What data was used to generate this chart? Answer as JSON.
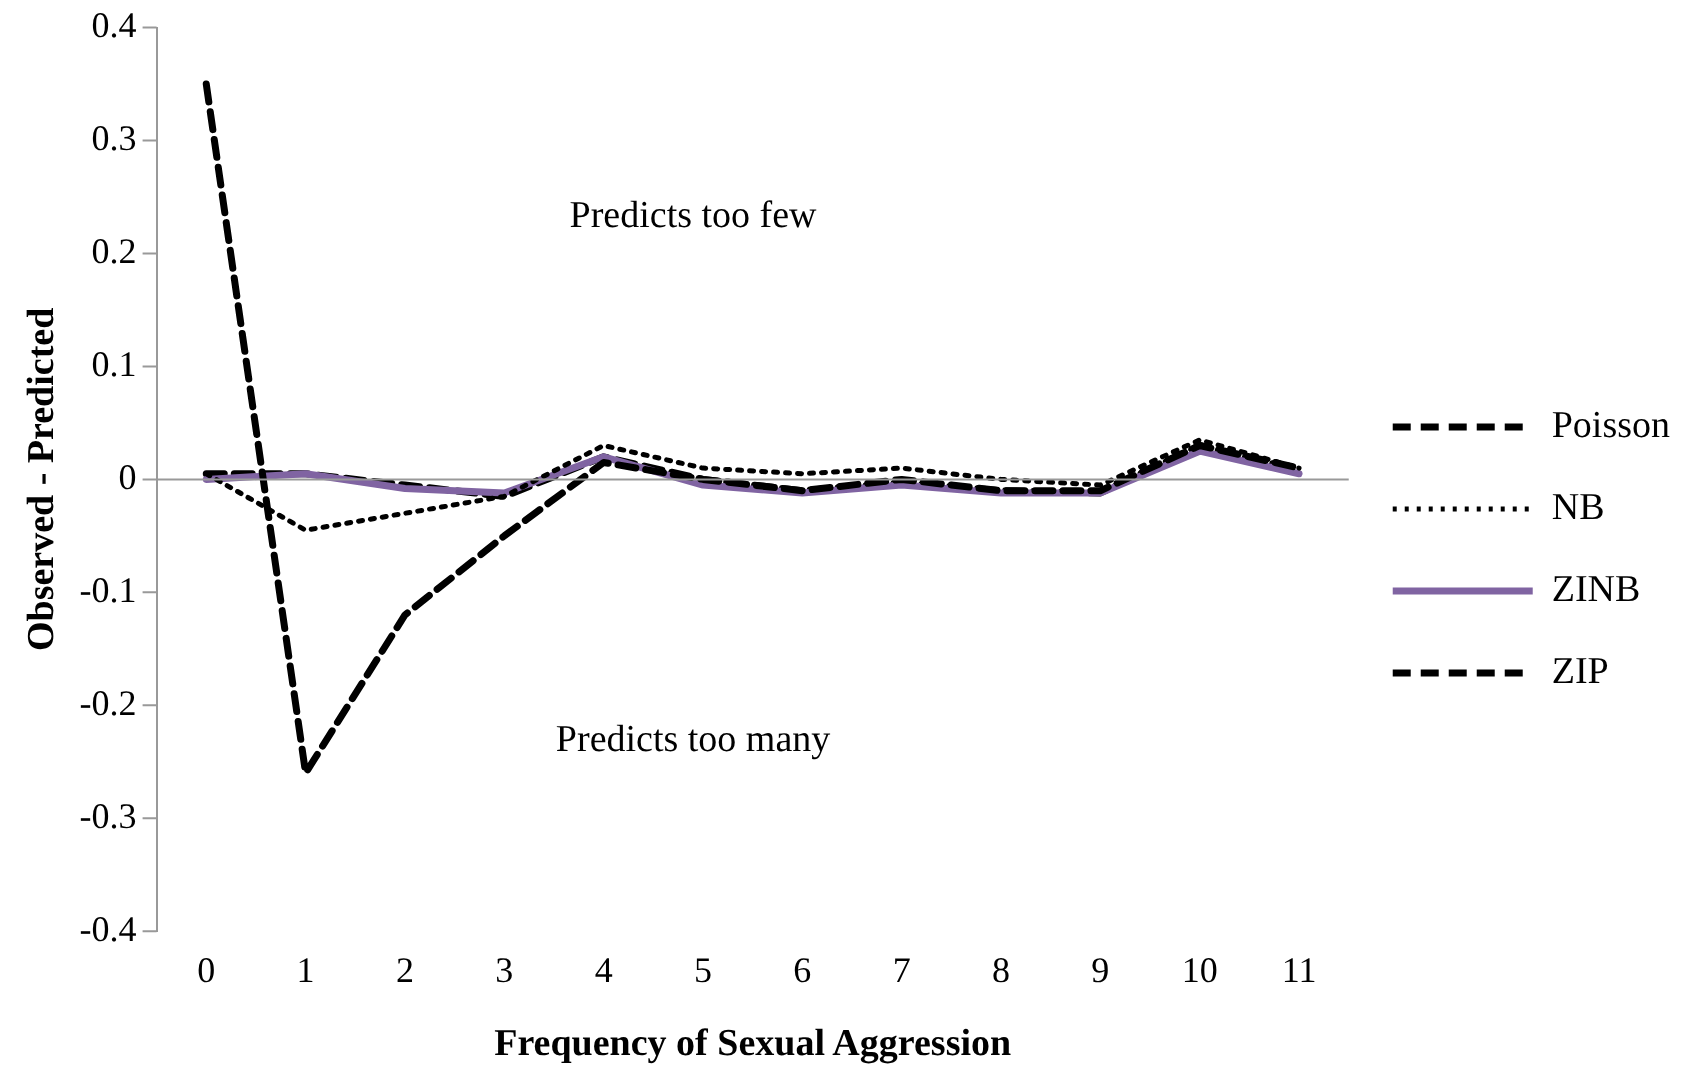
{
  "chart_data": {
    "type": "line",
    "xlabel": "Frequency of Sexual Aggression",
    "ylabel": "Observed - Predicted",
    "categories": [
      "0",
      "1",
      "2",
      "3",
      "4",
      "5",
      "6",
      "7",
      "8",
      "9",
      "10",
      "11"
    ],
    "series": [
      {
        "name": "Poisson",
        "color": "#000000",
        "line_style": "dashed",
        "values": [
          0.35,
          -0.26,
          -0.12,
          -0.05,
          0.015,
          0.0,
          -0.01,
          0.0,
          -0.01,
          -0.01,
          0.03,
          0.01
        ]
      },
      {
        "name": "NB",
        "color": "#000000",
        "line_style": "dotted",
        "values": [
          0.005,
          -0.045,
          -0.03,
          -0.015,
          0.03,
          0.01,
          0.005,
          0.01,
          0.0,
          -0.005,
          0.035,
          0.01
        ]
      },
      {
        "name": "ZINB",
        "color": "#8064a2",
        "line_style": "solid",
        "values": [
          0.0,
          0.005,
          -0.008,
          -0.012,
          0.02,
          -0.005,
          -0.012,
          -0.005,
          -0.012,
          -0.012,
          0.025,
          0.005
        ]
      },
      {
        "name": "ZIP",
        "color": "#000000",
        "line_style": "dashed",
        "values": [
          0.005,
          0.005,
          -0.005,
          -0.015,
          0.02,
          0.0,
          -0.01,
          -0.003,
          -0.01,
          -0.012,
          0.03,
          0.008
        ]
      }
    ],
    "ylim": [
      -0.4,
      0.4
    ],
    "yticks": [
      -0.4,
      -0.3,
      -0.2,
      -0.1,
      0,
      0.1,
      0.2,
      0.3,
      0.4
    ],
    "ref_lines": [
      {
        "axis": "y",
        "value": 0,
        "color": "#999999"
      }
    ],
    "grid": false,
    "legend": "right",
    "marker": "none",
    "annotations": [
      "Predicts too few",
      "Predicts too many"
    ]
  }
}
